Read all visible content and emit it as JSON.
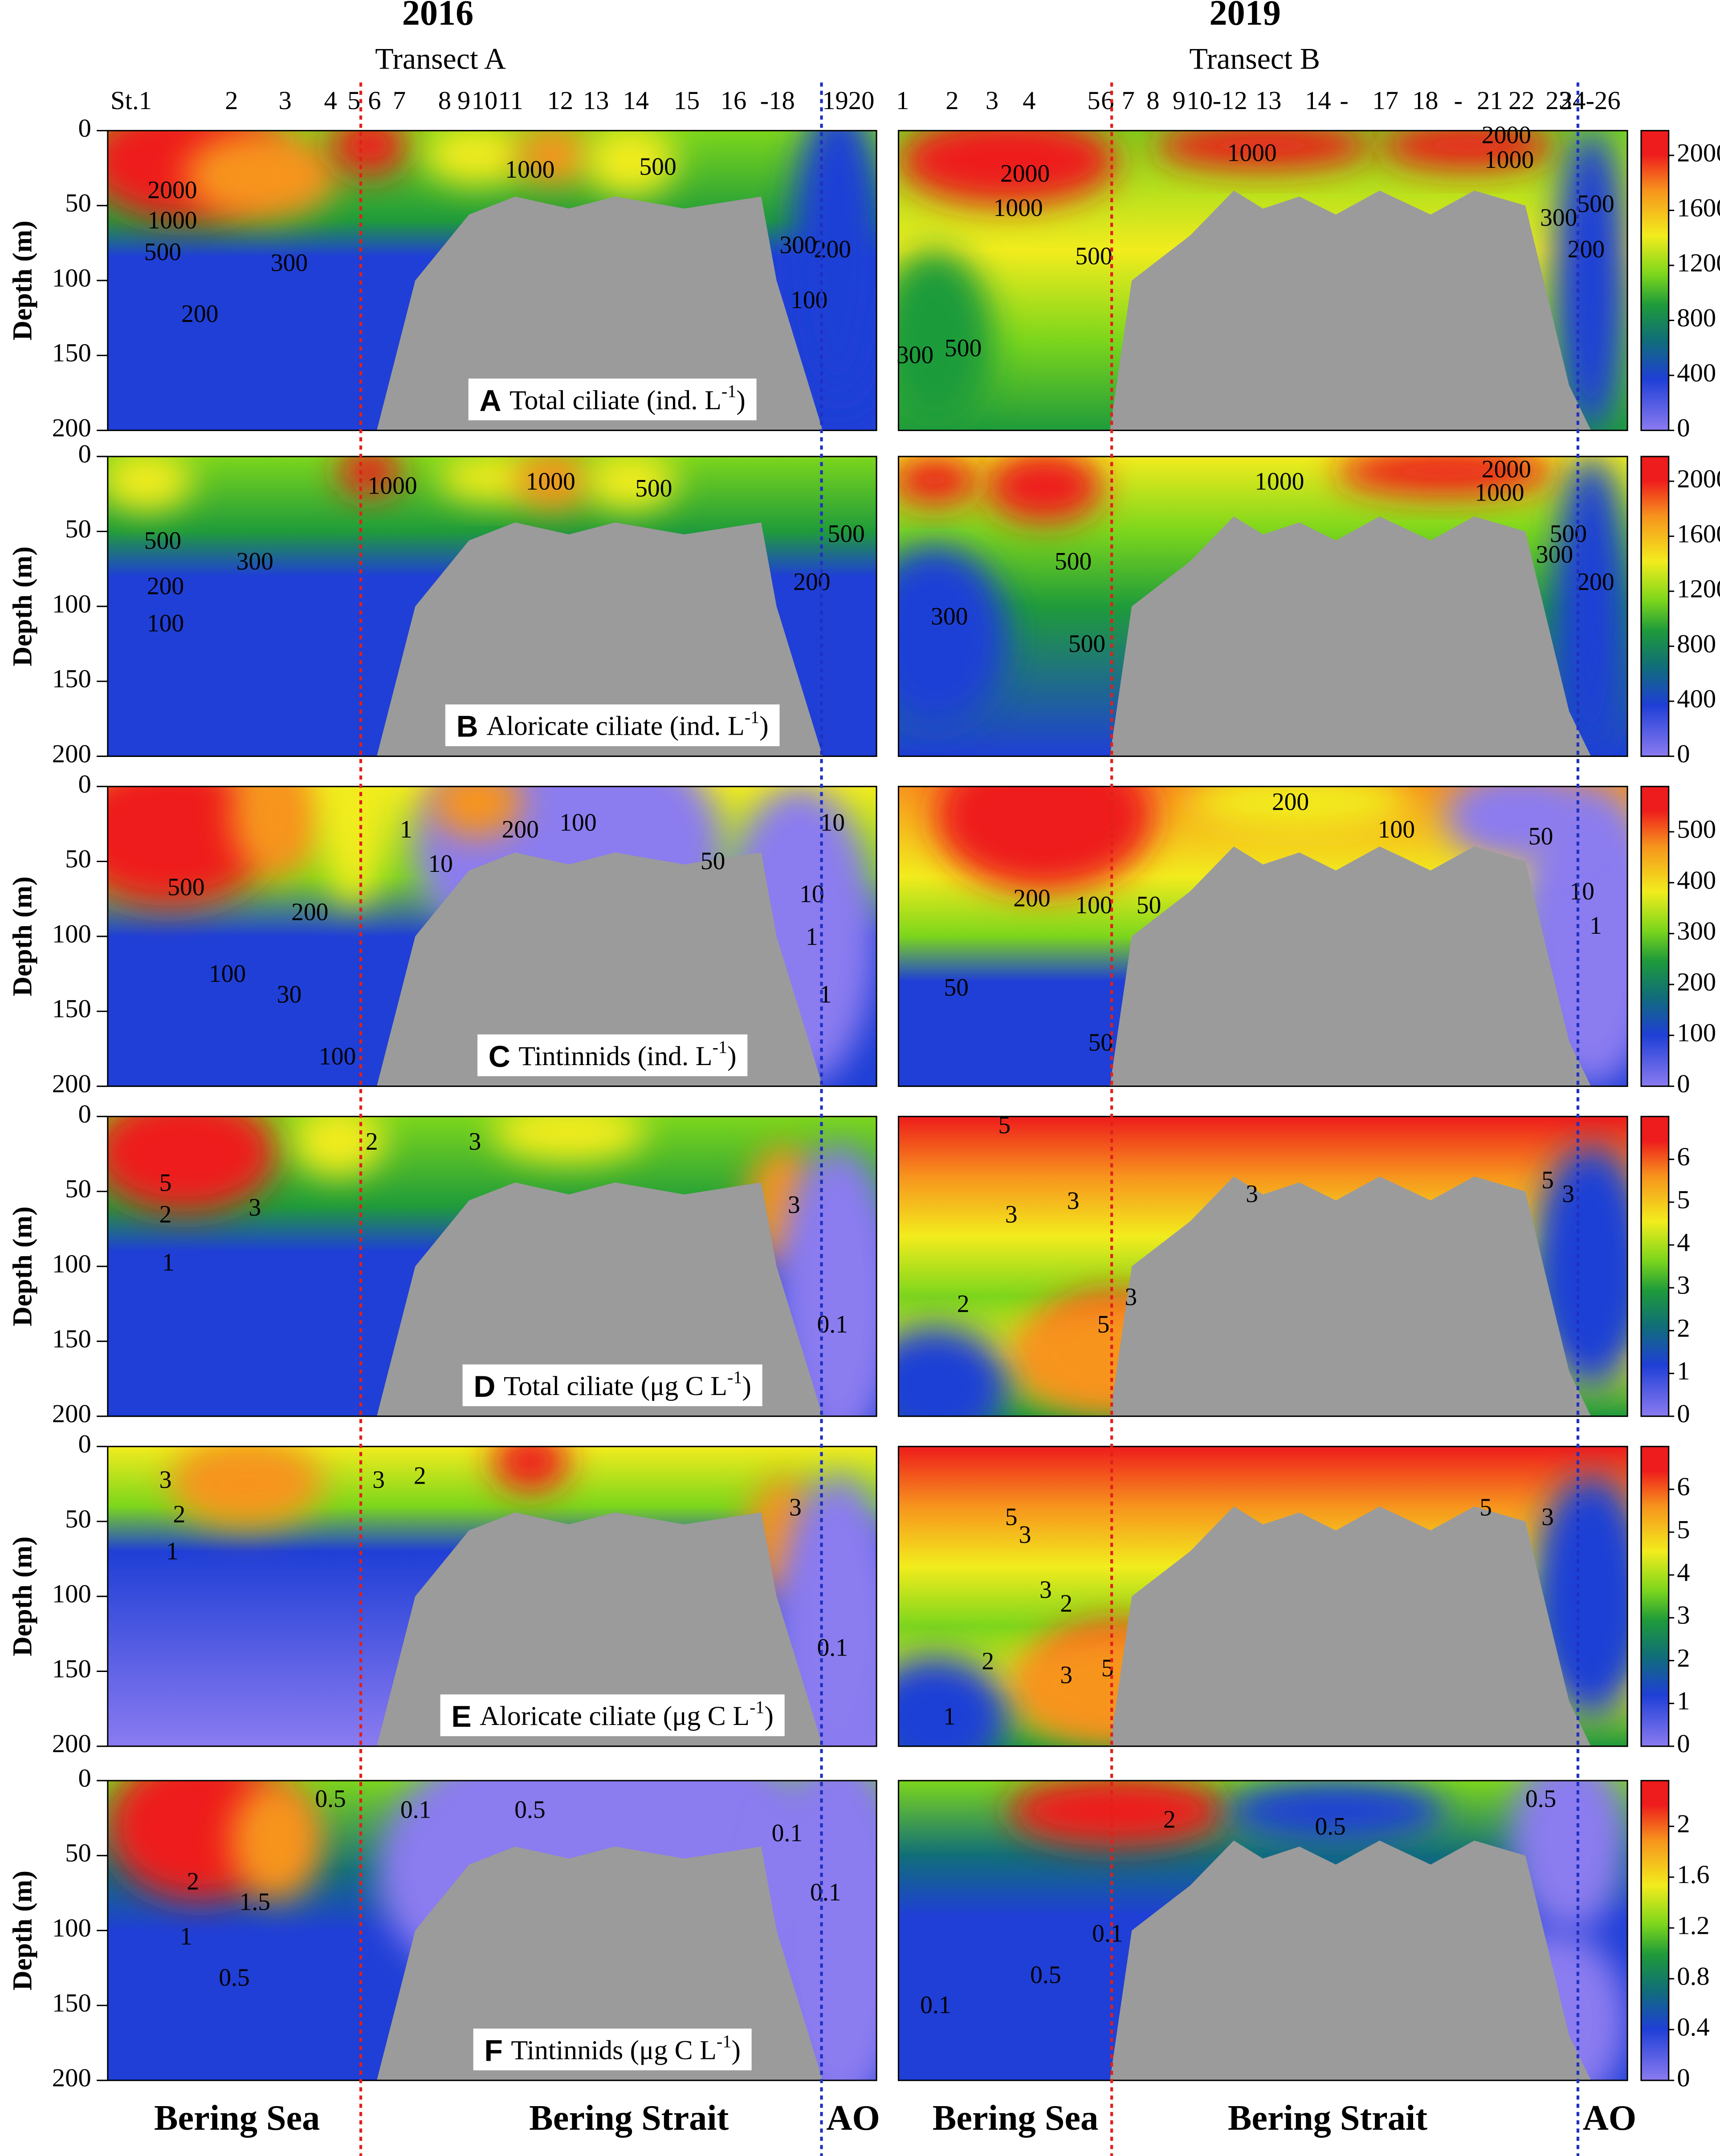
{
  "figure": {
    "year_2016": "2016",
    "year_2019": "2019",
    "transect_a": "Transect A",
    "transect_b": "Transect B",
    "stations_2016": [
      "St.1",
      "2",
      "3",
      "4",
      "5",
      "6",
      "7",
      "8",
      "9",
      "10",
      "11",
      "12",
      "13",
      "14",
      "15",
      "16",
      "-18",
      "19",
      "20"
    ],
    "stations_2019": [
      "1",
      "2",
      "3",
      "4",
      "5",
      "6",
      "7",
      "8",
      "9",
      "10",
      "-12",
      "13",
      "14",
      "-",
      "17",
      "18",
      "-",
      "21",
      "22",
      "23",
      "24-26"
    ],
    "regions": [
      "Bering Sea",
      "Bering Strait",
      "AO",
      "Bering Sea",
      "Bering Strait",
      "AO"
    ]
  },
  "chart_data": [
    {
      "type": "contour",
      "letter": "A",
      "title": "Total ciliate (ind. L",
      "title_sup": "-1",
      "title_end": ")",
      "ylabel": "Depth (m)",
      "ylim": [
        0,
        200
      ],
      "y_inverted": true,
      "yticks": [
        0,
        50,
        100,
        150,
        200
      ],
      "colorbar": {
        "lim": [
          0,
          2180
        ],
        "ticks": [
          0,
          400,
          800,
          1200,
          1600,
          2000
        ]
      },
      "contours_2016": [
        2000,
        1000,
        500,
        300,
        200,
        1000,
        500,
        300,
        200,
        100
      ],
      "contours_2019": [
        2000,
        1000,
        500,
        500,
        300,
        1000,
        2000,
        1000,
        300,
        500,
        200
      ]
    },
    {
      "type": "contour",
      "letter": "B",
      "title": "Aloricate ciliate (ind. L",
      "title_sup": "-1",
      "title_end": ")",
      "ylabel": "Depth (m)",
      "ylim": [
        0,
        200
      ],
      "y_inverted": true,
      "yticks": [
        0,
        50,
        100,
        150,
        200
      ],
      "colorbar": {
        "lim": [
          0,
          2180
        ],
        "ticks": [
          0,
          400,
          800,
          1200,
          1600,
          2000
        ]
      },
      "contours_2016": [
        1000,
        1000,
        500,
        500,
        300,
        200,
        100,
        500,
        200
      ],
      "contours_2019": [
        1000,
        2000,
        1000,
        500,
        300,
        500,
        500,
        300,
        200
      ]
    },
    {
      "type": "contour",
      "letter": "C",
      "title": "Tintinnids (ind. L",
      "title_sup": "-1",
      "title_end": ")",
      "ylabel": "Depth (m)",
      "ylim": [
        0,
        200
      ],
      "y_inverted": true,
      "yticks": [
        0,
        50,
        100,
        150,
        200
      ],
      "colorbar": {
        "lim": [
          0,
          589
        ],
        "ticks": [
          0,
          100,
          200,
          300,
          400,
          500
        ]
      },
      "contours_2016": [
        500,
        200,
        100,
        30,
        100,
        1,
        10,
        200,
        100,
        50,
        10,
        10,
        1,
        1
      ],
      "contours_2019": [
        200,
        100,
        50,
        200,
        100,
        50,
        10,
        1,
        50,
        50
      ]
    },
    {
      "type": "contour",
      "letter": "D",
      "title": "Total ciliate (μg C L",
      "title_sup": "-1",
      "title_end": ")",
      "ylabel": "Depth (m)",
      "ylim": [
        0,
        200
      ],
      "y_inverted": true,
      "yticks": [
        0,
        50,
        100,
        150,
        200
      ],
      "colorbar": {
        "lim": [
          0,
          7
        ],
        "ticks": [
          0,
          1,
          2,
          3,
          4,
          5,
          6
        ]
      },
      "contours_2016": [
        5,
        3,
        2,
        1,
        2,
        3,
        0.1,
        3
      ],
      "contours_2019": [
        5,
        3,
        3,
        2,
        3,
        5,
        5,
        3,
        3
      ]
    },
    {
      "type": "contour",
      "letter": "E",
      "title": "Aloricate ciliate (μg C L",
      "title_sup": "-1",
      "title_end": ")",
      "ylabel": "Depth (m)",
      "ylim": [
        0,
        200
      ],
      "y_inverted": true,
      "yticks": [
        0,
        50,
        100,
        150,
        200
      ],
      "colorbar": {
        "lim": [
          0,
          7
        ],
        "ticks": [
          0,
          1,
          2,
          3,
          4,
          5,
          6
        ]
      },
      "contours_2016": [
        3,
        2,
        1,
        3,
        2,
        0.1,
        3
      ],
      "contours_2019": [
        5,
        3,
        3,
        2,
        2,
        3,
        5,
        1,
        5,
        3
      ]
    },
    {
      "type": "contour",
      "letter": "F",
      "title": "Tintinnids (μg C L",
      "title_sup": "-1",
      "title_end": ")",
      "ylabel": "Depth (m)",
      "ylim": [
        0,
        200
      ],
      "y_inverted": true,
      "yticks": [
        0,
        50,
        100,
        150,
        200
      ],
      "colorbar": {
        "lim": [
          0,
          2.36
        ],
        "ticks": [
          0,
          0.4,
          0.8,
          1.2,
          1.6,
          2
        ]
      },
      "contours_2016": [
        2,
        1.5,
        1,
        0.5,
        0.5,
        0.1,
        0.5,
        0.1,
        0.1
      ],
      "contours_2019": [
        0.5,
        0.1,
        0.1,
        0.5,
        0.5,
        2
      ]
    }
  ]
}
